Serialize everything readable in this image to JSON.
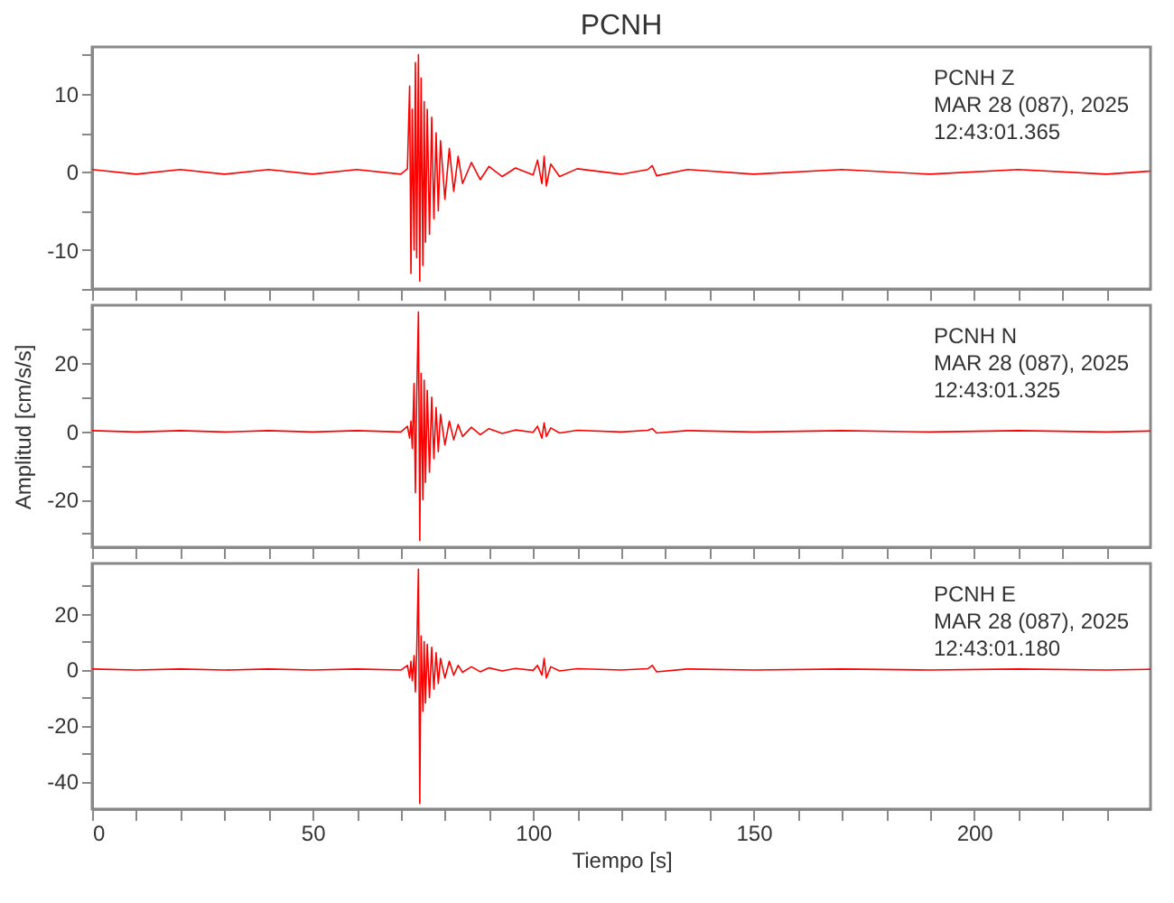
{
  "chart_data": [
    {
      "type": "line",
      "title": "PCNH",
      "xlim": [
        0,
        240
      ],
      "xticks": [
        0,
        {
          "value": 10,
          "label": null
        },
        {
          "value": 20,
          "label": null
        },
        {
          "value": 30,
          "label": null
        },
        {
          "value": 40,
          "label": null
        },
        50,
        {
          "value": 60,
          "label": null
        },
        {
          "value": 70,
          "label": null
        },
        {
          "value": 80,
          "label": null
        },
        {
          "value": 90,
          "label": null
        },
        100,
        {
          "value": 110,
          "label": null
        },
        {
          "value": 120,
          "label": null
        },
        {
          "value": 130,
          "label": null
        },
        {
          "value": 140,
          "label": null
        },
        150,
        {
          "value": 160,
          "label": null
        },
        {
          "value": 170,
          "label": null
        },
        {
          "value": 180,
          "label": null
        },
        {
          "value": 190,
          "label": null
        },
        200,
        {
          "value": 210,
          "label": null
        },
        {
          "value": 220,
          "label": null
        },
        {
          "value": 230,
          "label": null
        }
      ],
      "ylim": [
        -15,
        16
      ],
      "yticks": [
        {
          "value": -15,
          "label": null
        },
        -10,
        {
          "value": -5,
          "label": null
        },
        0,
        {
          "value": 5,
          "label": null
        },
        10,
        {
          "value": 15,
          "label": null
        }
      ],
      "tick_labels": "y",
      "grid": false,
      "annotations": [
        "PCNH   Z",
        "MAR 28 (087), 2025",
        "12:43:01.365"
      ],
      "series": [
        {
          "color": "#ff0000",
          "x": [
            0,
            10,
            20,
            30,
            40,
            50,
            60,
            70,
            71.5,
            72,
            72.3,
            72.6,
            73,
            73.3,
            73.6,
            74,
            74.3,
            74.6,
            75,
            75.3,
            75.6,
            76,
            76.5,
            77,
            77.5,
            78,
            78.5,
            79,
            80,
            81,
            82,
            83,
            84,
            86,
            88,
            90,
            93,
            96,
            100,
            101,
            102,
            102.5,
            103,
            104,
            106,
            110,
            120,
            126,
            127,
            128,
            135,
            150,
            170,
            190,
            210,
            230,
            240
          ],
          "values": [
            0.3,
            -0.3,
            0.3,
            -0.3,
            0.3,
            -0.3,
            0.3,
            -0.3,
            0.4,
            11,
            -13,
            8,
            -10,
            14,
            -11,
            15,
            -14,
            12,
            -12,
            9,
            -9,
            8,
            -8,
            7,
            -6,
            5,
            -5,
            4,
            -3.5,
            3,
            -2.5,
            2,
            -1.5,
            1.2,
            -1,
            0.7,
            -0.6,
            0.5,
            -0.4,
            1.5,
            -1.5,
            2,
            -1.8,
            1,
            -0.6,
            0.4,
            -0.3,
            0.3,
            0.8,
            -0.5,
            0.3,
            -0.3,
            0.3,
            -0.3,
            0.3,
            -0.3,
            0.1
          ]
        }
      ]
    },
    {
      "type": "line",
      "ylabel": "Amplitud [cm/s/s]",
      "xlim": [
        0,
        240
      ],
      "xticks": [
        0,
        {
          "value": 10,
          "label": null
        },
        {
          "value": 20,
          "label": null
        },
        {
          "value": 30,
          "label": null
        },
        {
          "value": 40,
          "label": null
        },
        50,
        {
          "value": 60,
          "label": null
        },
        {
          "value": 70,
          "label": null
        },
        {
          "value": 80,
          "label": null
        },
        {
          "value": 90,
          "label": null
        },
        100,
        {
          "value": 110,
          "label": null
        },
        {
          "value": 120,
          "label": null
        },
        {
          "value": 130,
          "label": null
        },
        {
          "value": 140,
          "label": null
        },
        150,
        {
          "value": 160,
          "label": null
        },
        {
          "value": 170,
          "label": null
        },
        {
          "value": 180,
          "label": null
        },
        {
          "value": 190,
          "label": null
        },
        200,
        {
          "value": 210,
          "label": null
        },
        {
          "value": 220,
          "label": null
        },
        {
          "value": 230,
          "label": null
        }
      ],
      "ylim": [
        -34,
        37
      ],
      "yticks": [
        {
          "value": -30,
          "label": null
        },
        -20,
        {
          "value": -10,
          "label": null
        },
        0,
        {
          "value": 10,
          "label": null
        },
        20,
        {
          "value": 30,
          "label": null
        }
      ],
      "tick_labels": "y",
      "grid": false,
      "annotations": [
        "PCNH   N",
        "MAR 28 (087), 2025",
        "12:43:01.325"
      ],
      "series": [
        {
          "color": "#ff0000",
          "x": [
            0,
            10,
            20,
            30,
            40,
            50,
            60,
            70,
            71.5,
            72,
            72.3,
            72.6,
            73,
            73.3,
            73.6,
            74,
            74.3,
            74.6,
            75,
            75.3,
            75.6,
            76,
            76.5,
            77,
            77.5,
            78,
            78.5,
            79,
            80,
            81,
            82,
            83,
            84,
            86,
            88,
            90,
            93,
            96,
            100,
            101,
            102,
            102.5,
            103,
            104,
            106,
            110,
            120,
            126,
            127,
            128,
            135,
            150,
            170,
            190,
            210,
            230,
            240
          ],
          "values": [
            0.2,
            -0.2,
            0.2,
            -0.2,
            0.2,
            -0.2,
            0.2,
            -0.2,
            1.5,
            -2,
            3,
            -5,
            14,
            -18,
            10,
            35,
            -32,
            17,
            -20,
            15,
            -15,
            12,
            -12,
            10,
            -8,
            7,
            -6,
            5,
            -4,
            3,
            -2.5,
            2,
            -1.5,
            1.2,
            -1,
            0.8,
            -0.6,
            0.4,
            -0.3,
            1.5,
            -2,
            2.5,
            -1.5,
            1,
            -0.5,
            0.3,
            -0.2,
            0.3,
            0.8,
            -0.5,
            0.2,
            -0.2,
            0.2,
            -0.2,
            0.2,
            -0.2,
            0.1
          ]
        }
      ]
    },
    {
      "type": "line",
      "xlabel": "Tiempo [s]",
      "xlim": [
        0,
        240
      ],
      "xticks": [
        0,
        {
          "value": 10,
          "label": null
        },
        {
          "value": 20,
          "label": null
        },
        {
          "value": 30,
          "label": null
        },
        {
          "value": 40,
          "label": null
        },
        50,
        {
          "value": 60,
          "label": null
        },
        {
          "value": 70,
          "label": null
        },
        {
          "value": 80,
          "label": null
        },
        {
          "value": 90,
          "label": null
        },
        100,
        {
          "value": 110,
          "label": null
        },
        {
          "value": 120,
          "label": null
        },
        {
          "value": 130,
          "label": null
        },
        {
          "value": 140,
          "label": null
        },
        150,
        {
          "value": 160,
          "label": null
        },
        {
          "value": 170,
          "label": null
        },
        {
          "value": 180,
          "label": null
        },
        {
          "value": 190,
          "label": null
        },
        200,
        {
          "value": 210,
          "label": null
        },
        {
          "value": 220,
          "label": null
        },
        {
          "value": 230,
          "label": null
        }
      ],
      "ylim": [
        -50,
        38
      ],
      "yticks": [
        -40,
        {
          "value": -30,
          "label": null
        },
        -20,
        {
          "value": -10,
          "label": null
        },
        0,
        {
          "value": 10,
          "label": null
        },
        20,
        {
          "value": 30,
          "label": null
        }
      ],
      "grid": false,
      "annotations": [
        "PCNH   E",
        "MAR 28 (087), 2025",
        "12:43:01.180"
      ],
      "series": [
        {
          "color": "#ff0000",
          "x": [
            0,
            10,
            20,
            30,
            40,
            50,
            60,
            70,
            71.5,
            72,
            72.3,
            72.6,
            73,
            73.3,
            73.6,
            74,
            74.3,
            74.6,
            75,
            75.3,
            75.6,
            76,
            76.5,
            77,
            77.5,
            78,
            78.5,
            79,
            80,
            81,
            82,
            83,
            84,
            86,
            88,
            90,
            93,
            96,
            100,
            101,
            102,
            102.5,
            103,
            104,
            106,
            110,
            120,
            126,
            127,
            128,
            135,
            150,
            170,
            190,
            210,
            230,
            240
          ],
          "values": [
            0.2,
            -0.2,
            0.2,
            -0.2,
            0.2,
            -0.2,
            0.2,
            -0.2,
            1.5,
            -3,
            3,
            -4,
            5,
            -8,
            6,
            36,
            -48,
            12,
            -15,
            10,
            -12,
            9,
            -10,
            8,
            -7,
            6,
            -5,
            4,
            -3,
            3,
            -2,
            1.5,
            -1,
            1,
            -0.8,
            0.6,
            -0.5,
            0.4,
            -0.3,
            1.5,
            -2,
            4,
            -3,
            1,
            -0.5,
            0.3,
            -0.2,
            0.3,
            1.5,
            -0.8,
            0.2,
            -0.2,
            0.2,
            -0.2,
            0.2,
            -0.2,
            0.1
          ]
        }
      ]
    }
  ]
}
